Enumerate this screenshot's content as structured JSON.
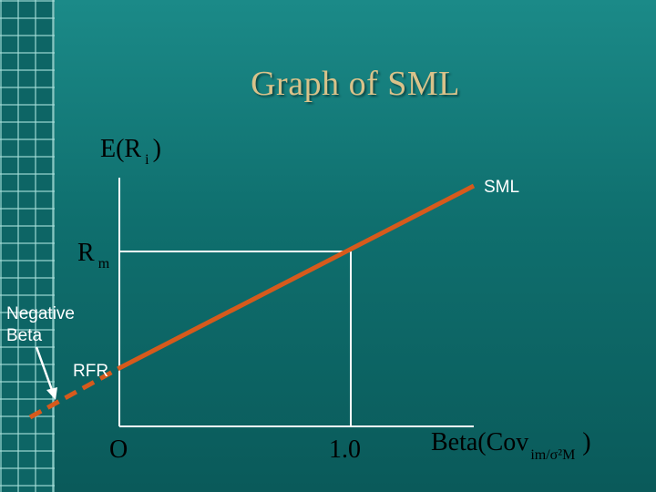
{
  "title": "Graph of SML",
  "y_axis_label": {
    "main": "E(R",
    "sub": "i",
    "close": ")"
  },
  "rm_label": {
    "main": "R",
    "sub": "m"
  },
  "origin_label": "O",
  "beta_one_label": "1.0",
  "x_axis_label": {
    "main": "Beta(Cov",
    "sub": "im/σ²M",
    "close": ")"
  },
  "sml_label": "SML",
  "negative_beta_label": [
    "Negative",
    "Beta"
  ],
  "rfr_label": "RFR",
  "colors": {
    "sml_line": "#d65a1c",
    "axes": "#ffffff",
    "title": "#d9c28a"
  },
  "chart_data": {
    "type": "line",
    "title": "Graph of SML",
    "xlabel": "Beta(Covim/σ²M)",
    "ylabel": "E(Ri)",
    "x_ticks": [
      "O",
      "1.0"
    ],
    "y_ticks": [
      "Rm",
      "RFR"
    ],
    "series": [
      {
        "name": "SML",
        "style": "solid",
        "x": [
          0,
          1.0,
          1.6
        ],
        "y": [
          "RFR",
          "Rm",
          ""
        ]
      },
      {
        "name": "",
        "style": "dashed",
        "x": [
          -0.4,
          0
        ],
        "y": [
          "",
          "RFR"
        ]
      }
    ]
  }
}
